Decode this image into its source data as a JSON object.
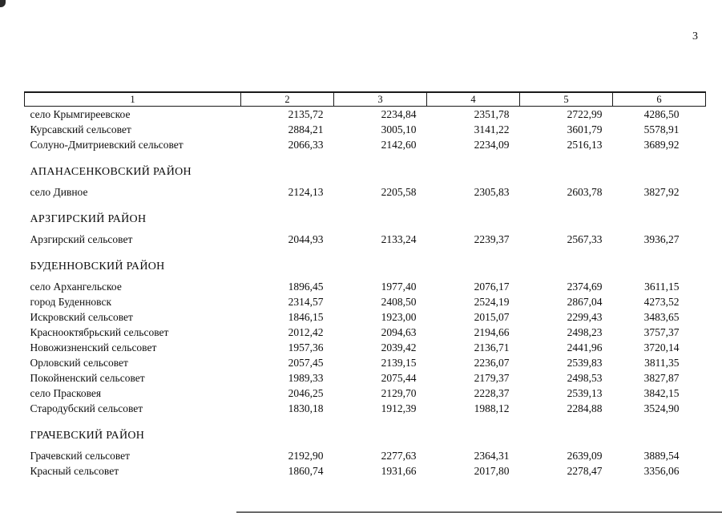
{
  "page_number": "3",
  "table": {
    "columns": [
      "1",
      "2",
      "3",
      "4",
      "5",
      "6"
    ],
    "sections": [
      {
        "title": null,
        "rows": [
          {
            "name": "село Крымгиреевское",
            "values": [
              "2135,72",
              "2234,84",
              "2351,78",
              "2722,99",
              "4286,50"
            ]
          },
          {
            "name": "Курсавский сельсовет",
            "values": [
              "2884,21",
              "3005,10",
              "3141,22",
              "3601,79",
              "5578,91"
            ]
          },
          {
            "name": "Солуно-Дмитриевский сельсовет",
            "values": [
              "2066,33",
              "2142,60",
              "2234,09",
              "2516,13",
              "3689,92"
            ]
          }
        ]
      },
      {
        "title": "АПАНАСЕНКОВСКИЙ РАЙОН",
        "rows": [
          {
            "name": "село Дивное",
            "values": [
              "2124,13",
              "2205,58",
              "2305,83",
              "2603,78",
              "3827,92"
            ]
          }
        ]
      },
      {
        "title": "АРЗГИРСКИЙ РАЙОН",
        "rows": [
          {
            "name": "Арзгирский сельсовет",
            "values": [
              "2044,93",
              "2133,24",
              "2239,37",
              "2567,33",
              "3936,27"
            ]
          }
        ]
      },
      {
        "title": "БУДЕННОВСКИЙ РАЙОН",
        "rows": [
          {
            "name": "село Архангельское",
            "values": [
              "1896,45",
              "1977,40",
              "2076,17",
              "2374,69",
              "3611,15"
            ]
          },
          {
            "name": "город Буденновск",
            "values": [
              "2314,57",
              "2408,50",
              "2524,19",
              "2867,04",
              "4273,52"
            ]
          },
          {
            "name": "Искровский сельсовет",
            "values": [
              "1846,15",
              "1923,00",
              "2015,07",
              "2299,43",
              "3483,65"
            ]
          },
          {
            "name": "Краснооктябрьский сельсовет",
            "values": [
              "2012,42",
              "2094,63",
              "2194,66",
              "2498,23",
              "3757,37"
            ]
          },
          {
            "name": "Новожизненский сельсовет",
            "values": [
              "1957,36",
              "2039,42",
              "2136,71",
              "2441,96",
              "3720,14"
            ]
          },
          {
            "name": "Орловский сельсовет",
            "values": [
              "2057,45",
              "2139,15",
              "2236,07",
              "2539,83",
              "3811,35"
            ]
          },
          {
            "name": "Покойненский сельсовет",
            "values": [
              "1989,33",
              "2075,44",
              "2179,37",
              "2498,53",
              "3827,87"
            ]
          },
          {
            "name": "село Прасковея",
            "values": [
              "2046,25",
              "2129,70",
              "2228,37",
              "2539,13",
              "3842,15"
            ]
          },
          {
            "name": "Стародубский сельсовет",
            "values": [
              "1830,18",
              "1912,39",
              "1988,12",
              "2284,88",
              "3524,90"
            ]
          }
        ]
      },
      {
        "title": "ГРАЧЕВСКИЙ РАЙОН",
        "rows": [
          {
            "name": "Грачевский сельсовет",
            "values": [
              "2192,90",
              "2277,63",
              "2364,31",
              "2639,09",
              "3889,54"
            ]
          },
          {
            "name": "Красный сельсовет",
            "values": [
              "1860,74",
              "1931,66",
              "2017,80",
              "2278,47",
              "3356,06"
            ]
          }
        ]
      }
    ]
  }
}
